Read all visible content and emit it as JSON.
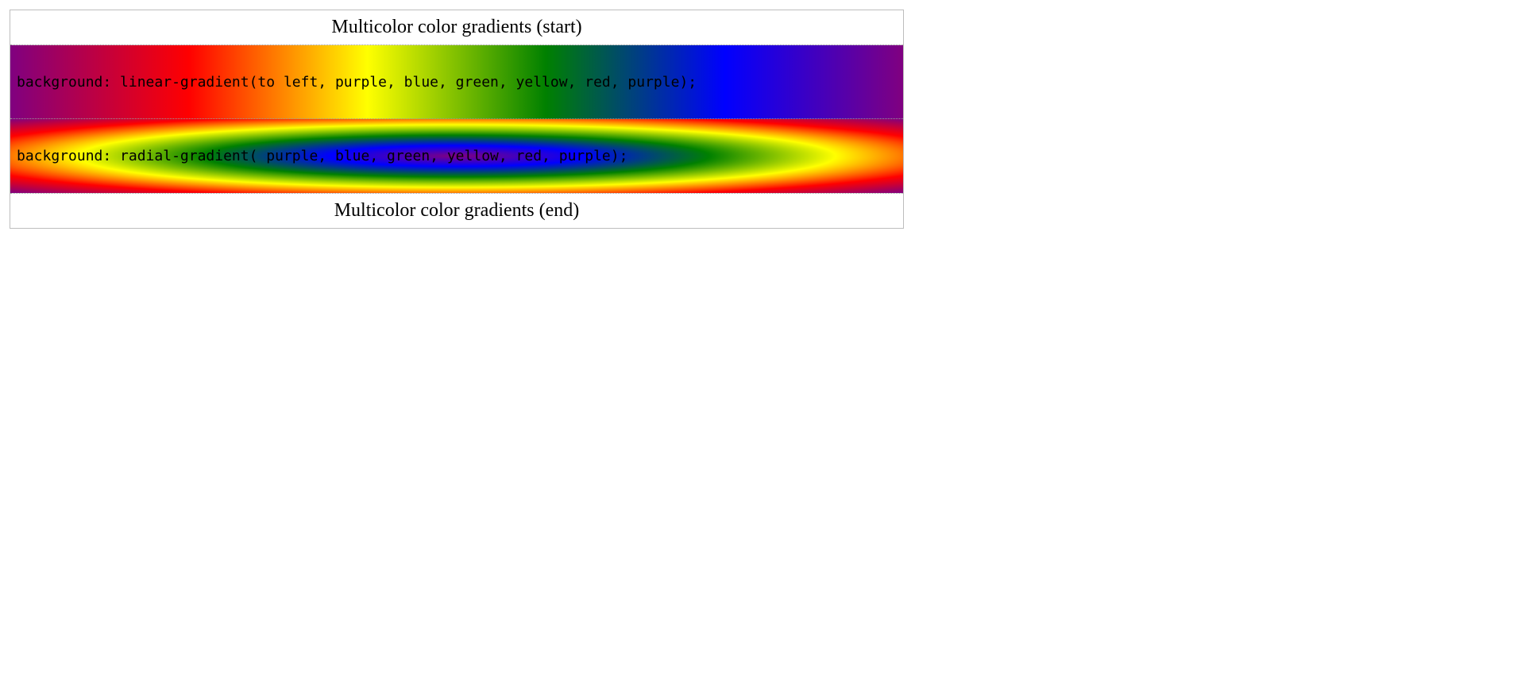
{
  "table": {
    "caption_start": "Multicolor color gradients (start)",
    "rows": [
      {
        "css_text": "background: linear-gradient(to left, purple, blue, green, yellow, red, purple);"
      },
      {
        "css_text": "background: radial-gradient( purple, blue, green, yellow, red, purple);"
      }
    ],
    "caption_end": "Multicolor color gradients (end)"
  },
  "colors": {
    "gradient_stops": [
      "purple",
      "blue",
      "green",
      "yellow",
      "red",
      "purple"
    ],
    "border": "#bdbdbd"
  }
}
